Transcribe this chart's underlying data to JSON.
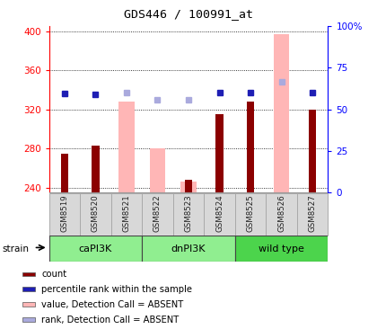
{
  "title": "GDS446 / 100991_at",
  "samples": [
    "GSM8519",
    "GSM8520",
    "GSM8521",
    "GSM8522",
    "GSM8523",
    "GSM8524",
    "GSM8525",
    "GSM8526",
    "GSM8527"
  ],
  "count_values": [
    275,
    283,
    null,
    null,
    248,
    315,
    328,
    null,
    320
  ],
  "absent_values": [
    null,
    null,
    328,
    280,
    246,
    null,
    null,
    397,
    null
  ],
  "rank_present": [
    336,
    335,
    null,
    null,
    null,
    337,
    337,
    null,
    337
  ],
  "rank_absent": [
    null,
    null,
    337,
    330,
    330,
    null,
    null,
    348,
    null
  ],
  "ylim_left": [
    235,
    405
  ],
  "ylim_right": [
    0,
    100
  ],
  "yticks_left": [
    240,
    280,
    320,
    360,
    400
  ],
  "yticks_right": [
    0,
    25,
    50,
    75,
    100
  ],
  "ytick_labels_right": [
    "0",
    "25",
    "50",
    "75",
    "100%"
  ],
  "groups": [
    {
      "label": "caPI3K",
      "start": 0,
      "end": 2,
      "color": "#90EE90"
    },
    {
      "label": "dnPI3K",
      "start": 3,
      "end": 5,
      "color": "#90EE90"
    },
    {
      "label": "wild type",
      "start": 6,
      "end": 8,
      "color": "#4CD44C"
    }
  ],
  "color_count": "#8B0000",
  "color_absent_bar": "#FFB6B6",
  "color_rank_present": "#1E1EB4",
  "color_rank_absent": "#AAAADD",
  "legend_items": [
    {
      "label": "count",
      "color": "#8B0000"
    },
    {
      "label": "percentile rank within the sample",
      "color": "#1E1EB4"
    },
    {
      "label": "value, Detection Call = ABSENT",
      "color": "#FFB6B6"
    },
    {
      "label": "rank, Detection Call = ABSENT",
      "color": "#AAAADD"
    }
  ]
}
